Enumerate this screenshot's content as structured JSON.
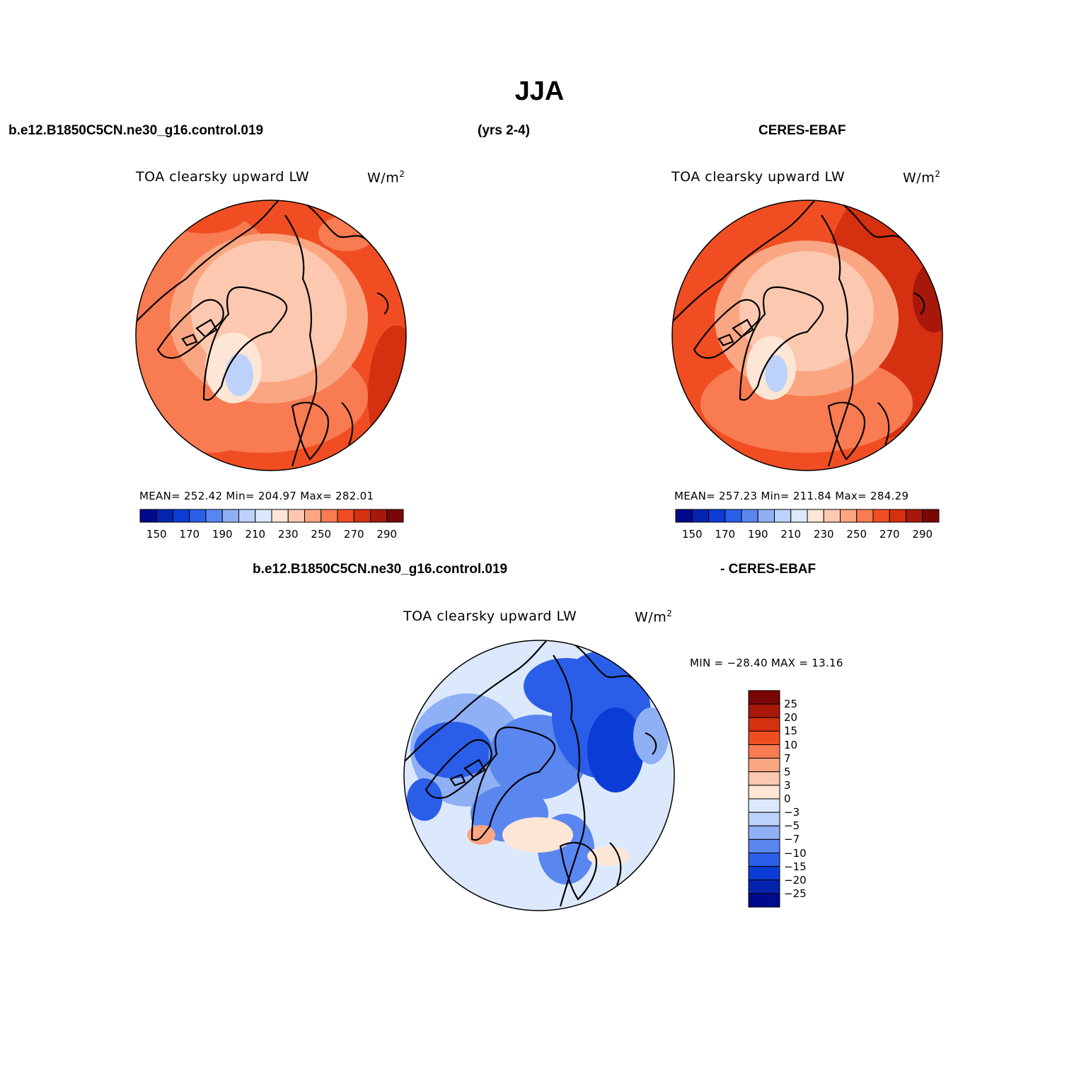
{
  "figure": {
    "title": "JJA",
    "case_name": "b.e12.B1850C5CN.ne30_g16.control.019",
    "years": "(yrs 2-4)",
    "obs_name": "CERES-EBAF",
    "diff_case_name": "b.e12.B1850C5CN.ne30_g16.control.019",
    "diff_obs_name": "- CERES-EBAF"
  },
  "panels": [
    {
      "id": "model",
      "variable": "TOA clearsky upward LW",
      "units": "W/m",
      "units_sup": "2",
      "stats": "MEAN= 252.42   Min= 204.97   Max= 282.01",
      "mean": 252.42,
      "min": 204.97,
      "max": 282.01
    },
    {
      "id": "obs",
      "variable": "TOA clearsky upward LW",
      "units": "W/m",
      "units_sup": "2",
      "stats": "MEAN= 257.23   Min= 211.84   Max= 284.29",
      "mean": 257.23,
      "min": 211.84,
      "max": 284.29
    },
    {
      "id": "diff",
      "variable": "TOA clearsky upward LW",
      "units": "W/m",
      "units_sup": "2",
      "stats": "MIN = −28.40 MAX =   13.16",
      "min": -28.4,
      "max": 13.16
    }
  ],
  "colorbar_abs": {
    "labels": [
      "150",
      "170",
      "190",
      "210",
      "230",
      "250",
      "270",
      "290"
    ],
    "colors": [
      "#000a8c",
      "#0424b0",
      "#0b3dd6",
      "#2a5ee8",
      "#5a86f0",
      "#8fb0f5",
      "#bcd2fa",
      "#dce9fc",
      "#fde6d6",
      "#fcc9b0",
      "#fba682",
      "#f87b52",
      "#f04e22",
      "#d53010",
      "#a8180a",
      "#7a0606"
    ]
  },
  "colorbar_diff": {
    "labels": [
      "25",
      "20",
      "15",
      "10",
      "7",
      "5",
      "3",
      "0",
      "−3",
      "−5",
      "−7",
      "−10",
      "−15",
      "−20",
      "−25"
    ],
    "colors": [
      "#7a0606",
      "#a8180a",
      "#d53010",
      "#f04e22",
      "#f87b52",
      "#fba682",
      "#fcc9b0",
      "#fde6d6",
      "#dce9fc",
      "#bcd2fa",
      "#8fb0f5",
      "#5a86f0",
      "#2a5ee8",
      "#0b3dd6",
      "#0424b0",
      "#000a8c"
    ]
  }
}
